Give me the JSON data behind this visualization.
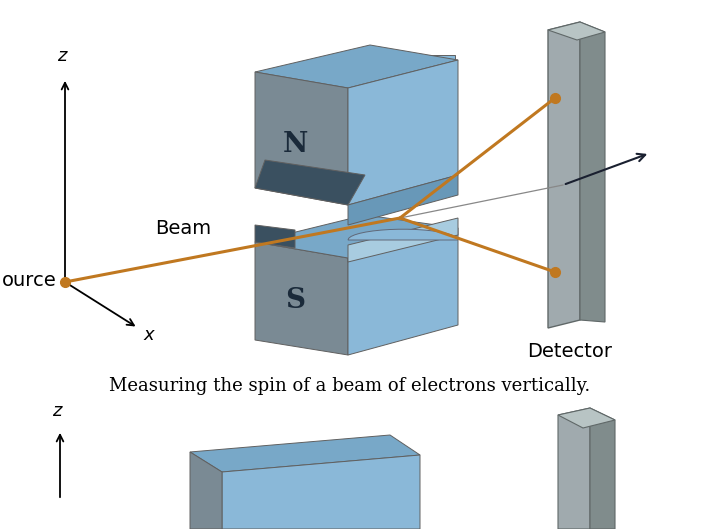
{
  "bg_color": "#ffffff",
  "caption": "Measuring the spin of a beam of electrons vertically.",
  "caption_fontsize": 13,
  "beam_color": "#c07820",
  "source_color": "#c07820",
  "magnet_light_blue": "#8ab8d8",
  "magnet_mid_blue": "#6898c0",
  "magnet_dark_face": "#708090",
  "magnet_dark_side": "#607080",
  "magnet_very_dark": "#4a5a6a",
  "magnet_bottom_face": "#a8c8e0",
  "detector_front": "#a8b4b8",
  "detector_side": "#889898",
  "detector_top": "#c0cccc",
  "label_beam": "Beam",
  "label_source": "ource",
  "label_detector": "Detector",
  "label_N": "N",
  "label_S": "S",
  "label_z": "z",
  "label_x": "x"
}
